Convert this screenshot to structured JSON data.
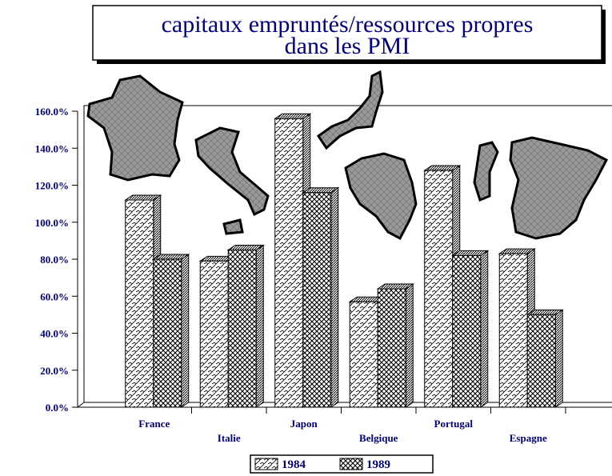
{
  "chart_data": {
    "type": "bar3d",
    "title": [
      "capitaux empruntés/ressources propres",
      "dans les PMI"
    ],
    "categories": [
      "France",
      "Italie",
      "Japon",
      "Belgique",
      "Portugal",
      "Espagne"
    ],
    "series": [
      {
        "name": "1984",
        "color": "#ffffff",
        "values": [
          112,
          79,
          156,
          57,
          128,
          83
        ]
      },
      {
        "name": "1989",
        "color": "#ffffff",
        "values": [
          80,
          85,
          116,
          64,
          82,
          50
        ]
      }
    ],
    "ylim": [
      0,
      160
    ],
    "yticks": [
      {
        "value": 0,
        "label": "0.0%"
      },
      {
        "value": 20,
        "label": "20.0%"
      },
      {
        "value": 40,
        "label": "40.0%"
      },
      {
        "value": 60,
        "label": "60.0%"
      },
      {
        "value": 80,
        "label": "80.0%"
      },
      {
        "value": 100,
        "label": "100.0%"
      },
      {
        "value": 120,
        "label": "120.0%"
      },
      {
        "value": 140,
        "label": "140.0%"
      },
      {
        "value": 160,
        "label": "160.0%"
      }
    ]
  }
}
